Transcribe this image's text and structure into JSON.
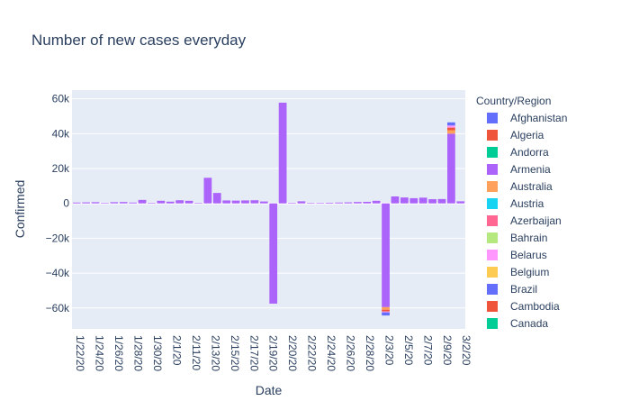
{
  "chart_data": {
    "type": "bar",
    "barmode": "relative",
    "title": "Number of new cases everyday",
    "xlabel": "Date",
    "ylabel": "Confirmed",
    "ylim": [
      -72000,
      65000
    ],
    "y_ticks": [
      -60000,
      -40000,
      -20000,
      0,
      20000,
      40000,
      60000
    ],
    "y_tick_labels": [
      "−60k",
      "−40k",
      "−20k",
      "0",
      "20k",
      "40k",
      "60k"
    ],
    "grid": true,
    "legend_title": "Country/Region",
    "legend_position": "right",
    "legend_entries": [
      {
        "name": "Afghanistan",
        "color": "#636efa"
      },
      {
        "name": "Algeria",
        "color": "#EF553B"
      },
      {
        "name": "Andorra",
        "color": "#00cc96"
      },
      {
        "name": "Armenia",
        "color": "#ab63fa"
      },
      {
        "name": "Australia",
        "color": "#FFA15A"
      },
      {
        "name": "Austria",
        "color": "#19d3f3"
      },
      {
        "name": "Azerbaijan",
        "color": "#FF6692"
      },
      {
        "name": "Bahrain",
        "color": "#B6E880"
      },
      {
        "name": "Belarus",
        "color": "#FF97FF"
      },
      {
        "name": "Belgium",
        "color": "#FECB52"
      },
      {
        "name": "Brazil",
        "color": "#636efa"
      },
      {
        "name": "Cambodia",
        "color": "#EF553B"
      },
      {
        "name": "Canada",
        "color": "#00cc96"
      }
    ],
    "x_tick_labels": [
      "1/22/20",
      "1/24/20",
      "1/26/20",
      "1/28/20",
      "1/30/20",
      "2/1/20",
      "2/11/20",
      "2/13/20",
      "2/15/20",
      "2/17/20",
      "2/19/20",
      "2/20/20",
      "2/22/20",
      "2/24/20",
      "2/26/20",
      "2/28/20",
      "2/3/20",
      "2/5/20",
      "2/7/20",
      "2/9/20",
      "3/2/20"
    ],
    "categories": [
      "1/22/20",
      "1/23/20",
      "1/24/20",
      "1/25/20",
      "1/26/20",
      "1/27/20",
      "1/28/20",
      "1/29/20",
      "1/30/20",
      "1/31/20",
      "2/1/20",
      "2/10/20",
      "2/11/20",
      "2/12/20",
      "2/13/20",
      "2/14/20",
      "2/15/20",
      "2/16/20",
      "2/17/20",
      "2/18/20",
      "2/19/20",
      "2/2/20",
      "2/20/20",
      "2/21/20",
      "2/22/20",
      "2/23/20",
      "2/24/20",
      "2/25/20",
      "2/26/20",
      "2/27/20",
      "2/28/20",
      "2/29/20",
      "2/3/20",
      "2/4/20",
      "2/5/20",
      "2/6/20",
      "2/7/20",
      "2/8/20",
      "2/9/20",
      "3/1/20",
      "3/2/20",
      "3/3/20"
    ],
    "series": [
      {
        "name": "Armenia",
        "color": "#ab63fa",
        "values": [
          500,
          600,
          700,
          300,
          700,
          800,
          500,
          2000,
          200,
          1500,
          1000,
          1800,
          1500,
          200,
          14700,
          6000,
          1700,
          1600,
          1700,
          1800,
          1100,
          -57500,
          57800,
          300,
          1200,
          200,
          300,
          400,
          500,
          600,
          800,
          900,
          1500,
          -59500,
          4000,
          3400,
          3000,
          3300,
          2400,
          2500,
          40000,
          1200
        ]
      },
      {
        "name": "Australia",
        "color": "#FFA15A",
        "values": [
          0,
          0,
          0,
          0,
          0,
          0,
          0,
          0,
          0,
          0,
          0,
          0,
          0,
          0,
          0,
          0,
          0,
          0,
          0,
          0,
          0,
          0,
          0,
          0,
          0,
          0,
          0,
          0,
          0,
          0,
          0,
          0,
          0,
          -1500,
          0,
          0,
          0,
          0,
          0,
          0,
          2000,
          0
        ]
      },
      {
        "name": "Algeria",
        "color": "#EF553B",
        "values": [
          0,
          0,
          0,
          0,
          0,
          0,
          0,
          0,
          0,
          0,
          0,
          0,
          0,
          0,
          0,
          0,
          0,
          0,
          0,
          0,
          0,
          0,
          0,
          0,
          0,
          0,
          0,
          0,
          0,
          0,
          0,
          0,
          0,
          -1000,
          0,
          0,
          0,
          0,
          0,
          0,
          1500,
          0
        ]
      },
      {
        "name": "Belarus",
        "color": "#FF97FF",
        "values": [
          0,
          0,
          0,
          0,
          0,
          0,
          0,
          0,
          0,
          0,
          0,
          0,
          0,
          0,
          0,
          0,
          0,
          0,
          0,
          0,
          0,
          0,
          0,
          0,
          0,
          0,
          0,
          0,
          0,
          0,
          0,
          0,
          0,
          -500,
          0,
          0,
          0,
          0,
          0,
          0,
          1200,
          0
        ]
      },
      {
        "name": "Afghanistan",
        "color": "#636efa",
        "values": [
          0,
          0,
          0,
          0,
          0,
          0,
          0,
          0,
          0,
          0,
          0,
          0,
          0,
          0,
          0,
          0,
          0,
          0,
          0,
          0,
          0,
          0,
          0,
          0,
          0,
          0,
          0,
          0,
          0,
          0,
          0,
          0,
          0,
          -1800,
          0,
          0,
          0,
          0,
          0,
          0,
          1800,
          0
        ]
      }
    ]
  }
}
